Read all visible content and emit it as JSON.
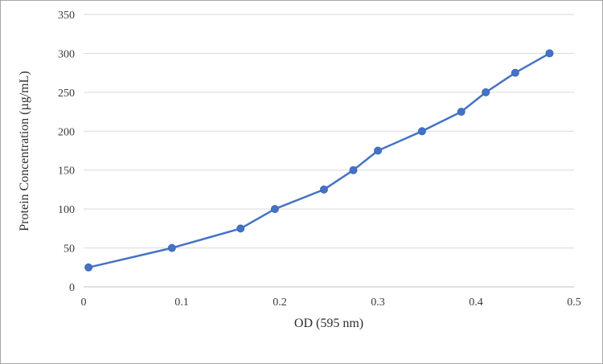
{
  "chart_data": {
    "type": "line",
    "title": "",
    "xlabel": "OD (595 nm)",
    "ylabel": "Protein Concentration (µg/mL)",
    "x": [
      0.005,
      0.09,
      0.16,
      0.195,
      0.245,
      0.275,
      0.3,
      0.345,
      0.385,
      0.41,
      0.44,
      0.475
    ],
    "y": [
      25,
      50,
      75,
      100,
      125,
      150,
      175,
      200,
      225,
      250,
      275,
      300
    ],
    "xlim": [
      0,
      0.5
    ],
    "ylim": [
      0,
      350
    ],
    "x_ticks": [
      0,
      0.1,
      0.2,
      0.3,
      0.4,
      0.5
    ],
    "y_ticks": [
      0,
      50,
      100,
      150,
      200,
      250,
      300,
      350
    ],
    "grid": "horizontal",
    "legend": "none",
    "marker": "circle"
  },
  "colors": {
    "line": "#4472C4",
    "marker": "#3E6AB8",
    "gridline": "#D9D9D9",
    "axis_line": "#BFBFBF",
    "tick_text": "#3B3B3B",
    "frame_border": "#A6A6A6",
    "background": "#FFFFFF"
  }
}
